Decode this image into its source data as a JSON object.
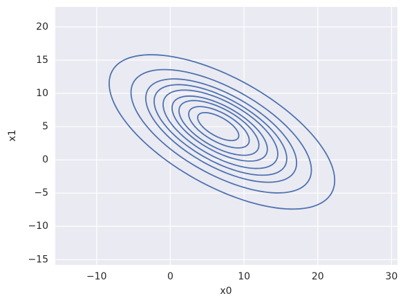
{
  "chart_data": {
    "type": "contour",
    "xlabel": "x0",
    "ylabel": "x1",
    "color": "#4c72b0",
    "grid": true,
    "xlim": [
      -15.6,
      30.8
    ],
    "ylim": [
      -15.8,
      23.0
    ],
    "xticks": [
      {
        "value": -10,
        "label": "−10"
      },
      0,
      10,
      20,
      30
    ],
    "yticks": [
      {
        "value": -15,
        "label": "−15"
      },
      {
        "value": -10,
        "label": "−10"
      },
      {
        "value": -5,
        "label": "−5"
      },
      0,
      5,
      10,
      15,
      20
    ],
    "contours": [
      {
        "cx": 7.0,
        "cy": 4.2,
        "a": 17.5,
        "b": 7.9,
        "angle": -33
      },
      {
        "cx": 6.9,
        "cy": 4.3,
        "a": 14.0,
        "b": 6.3,
        "angle": -33
      },
      {
        "cx": 6.9,
        "cy": 4.4,
        "a": 11.7,
        "b": 5.3,
        "angle": -33
      },
      {
        "cx": 6.8,
        "cy": 4.5,
        "a": 10.3,
        "b": 4.6,
        "angle": -33
      },
      {
        "cx": 6.8,
        "cy": 4.6,
        "a": 8.9,
        "b": 4.0,
        "angle": -33
      },
      {
        "cx": 6.7,
        "cy": 4.7,
        "a": 7.4,
        "b": 3.3,
        "angle": -33
      },
      {
        "cx": 6.6,
        "cy": 4.8,
        "a": 6.2,
        "b": 2.8,
        "angle": -33
      },
      {
        "cx": 6.6,
        "cy": 4.9,
        "a": 4.7,
        "b": 2.1,
        "angle": -33
      },
      {
        "cx": 6.5,
        "cy": 5.0,
        "a": 3.2,
        "b": 1.4,
        "angle": -33
      }
    ]
  }
}
